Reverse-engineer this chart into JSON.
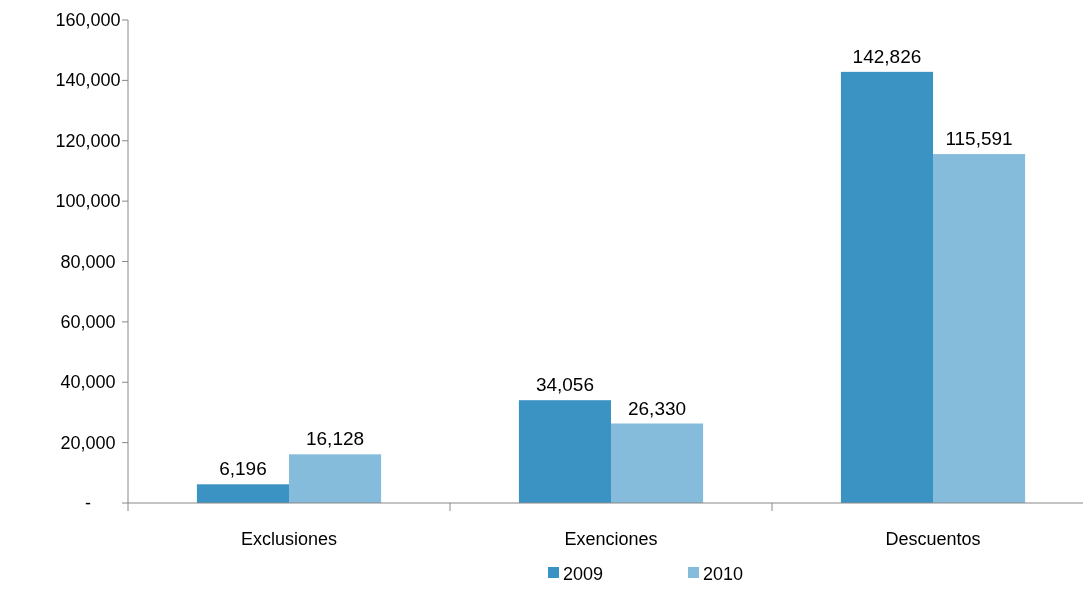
{
  "chart_data": {
    "type": "bar",
    "categories": [
      "Exclusiones",
      "Exenciones",
      "Descuentos"
    ],
    "series": [
      {
        "name": "2009",
        "color": "#3a93c3",
        "values": [
          6196,
          34056,
          142826
        ],
        "value_labels": [
          "6,196",
          "34,056",
          "142,826"
        ]
      },
      {
        "name": "2010",
        "color": "#85bcdb",
        "values": [
          16128,
          26330,
          115591
        ],
        "value_labels": [
          "16,128",
          "26,330",
          "115,591"
        ]
      }
    ],
    "ylim": [
      0,
      160000
    ],
    "yticks": [
      {
        "value": 0,
        "label": "-"
      },
      {
        "value": 20000,
        "label": "20,000"
      },
      {
        "value": 40000,
        "label": "40,000"
      },
      {
        "value": 60000,
        "label": "60,000"
      },
      {
        "value": 80000,
        "label": "80,000"
      },
      {
        "value": 100000,
        "label": "100,000"
      },
      {
        "value": 120000,
        "label": "120,000"
      },
      {
        "value": 140000,
        "label": "140,000"
      },
      {
        "value": 160000,
        "label": "160,000"
      }
    ],
    "grid": false,
    "legend": "bottom"
  }
}
